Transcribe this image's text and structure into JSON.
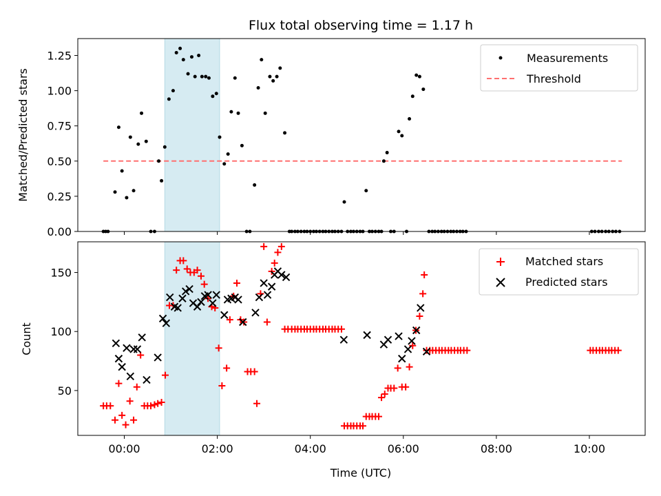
{
  "chart_data": {
    "type": "scatter",
    "title": "Flux total observing time = 1.17 h",
    "xlabel": "Time (UTC)",
    "xlim": [
      -1.0,
      11.2
    ],
    "xticks": [
      0,
      2,
      4,
      6,
      8,
      10
    ],
    "xtick_labels": [
      "00:00",
      "02:00",
      "04:00",
      "06:00",
      "08:00",
      "10:00"
    ],
    "highlight_span": [
      0.87,
      2.05
    ],
    "colors": {
      "highlight": "#add8e6",
      "measurement": "#000000",
      "threshold": "#ff6f6f",
      "matched": "#ff0000",
      "predicted": "#000000"
    },
    "panels": [
      {
        "ylabel": "Matched/Predicted stars",
        "ylim": [
          0,
          1.37
        ],
        "yticks": [
          0,
          0.25,
          0.5,
          0.75,
          1.0,
          1.25
        ],
        "ytick_labels": [
          "0.00",
          "0.25",
          "0.50",
          "0.75",
          "1.00",
          "1.25"
        ],
        "legend": [
          "Measurements",
          "Threshold"
        ],
        "threshold": {
          "value": 0.5,
          "x_start": -0.45,
          "x_end": 10.7
        },
        "measurements": [
          [
            -0.45,
            0
          ],
          [
            -0.4,
            0
          ],
          [
            -0.35,
            0
          ],
          [
            -0.2,
            0.28
          ],
          [
            -0.12,
            0.74
          ],
          [
            -0.05,
            0.43
          ],
          [
            0.05,
            0.24
          ],
          [
            0.13,
            0.67
          ],
          [
            0.2,
            0.29
          ],
          [
            0.3,
            0.62
          ],
          [
            0.37,
            0.84
          ],
          [
            0.47,
            0.64
          ],
          [
            0.57,
            0
          ],
          [
            0.65,
            0
          ],
          [
            0.74,
            0.5
          ],
          [
            0.8,
            0.36
          ],
          [
            0.87,
            0.6
          ],
          [
            0.96,
            0.94
          ],
          [
            1.05,
            1.0
          ],
          [
            1.12,
            1.27
          ],
          [
            1.2,
            1.3
          ],
          [
            1.27,
            1.22
          ],
          [
            1.37,
            1.12
          ],
          [
            1.45,
            1.24
          ],
          [
            1.52,
            1.1
          ],
          [
            1.6,
            1.25
          ],
          [
            1.67,
            1.1
          ],
          [
            1.75,
            1.1
          ],
          [
            1.82,
            1.09
          ],
          [
            1.9,
            0.96
          ],
          [
            1.98,
            0.98
          ],
          [
            2.05,
            0.67
          ],
          [
            2.15,
            0.48
          ],
          [
            2.23,
            0.55
          ],
          [
            2.3,
            0.85
          ],
          [
            2.38,
            1.09
          ],
          [
            2.45,
            0.84
          ],
          [
            2.53,
            0.61
          ],
          [
            2.63,
            0
          ],
          [
            2.7,
            0
          ],
          [
            2.8,
            0.33
          ],
          [
            2.88,
            1.02
          ],
          [
            2.95,
            1.22
          ],
          [
            3.03,
            0.84
          ],
          [
            3.13,
            1.1
          ],
          [
            3.2,
            1.07
          ],
          [
            3.28,
            1.1
          ],
          [
            3.35,
            1.16
          ],
          [
            3.45,
            0.7
          ],
          [
            3.55,
            0
          ],
          [
            3.6,
            0
          ],
          [
            3.67,
            0
          ],
          [
            3.73,
            0
          ],
          [
            3.8,
            0
          ],
          [
            3.87,
            0
          ],
          [
            3.93,
            0
          ],
          [
            4.0,
            0
          ],
          [
            4.07,
            0
          ],
          [
            4.13,
            0
          ],
          [
            4.2,
            0
          ],
          [
            4.27,
            0
          ],
          [
            4.33,
            0
          ],
          [
            4.4,
            0
          ],
          [
            4.47,
            0
          ],
          [
            4.53,
            0
          ],
          [
            4.6,
            0
          ],
          [
            4.67,
            0
          ],
          [
            4.73,
            0.21
          ],
          [
            4.8,
            0
          ],
          [
            4.87,
            0
          ],
          [
            4.93,
            0
          ],
          [
            5.0,
            0
          ],
          [
            5.07,
            0
          ],
          [
            5.13,
            0
          ],
          [
            5.2,
            0.29
          ],
          [
            5.27,
            0
          ],
          [
            5.33,
            0
          ],
          [
            5.4,
            0
          ],
          [
            5.47,
            0
          ],
          [
            5.53,
            0
          ],
          [
            5.58,
            0.5
          ],
          [
            5.65,
            0.56
          ],
          [
            5.73,
            0
          ],
          [
            5.8,
            0
          ],
          [
            5.9,
            0.71
          ],
          [
            5.97,
            0.68
          ],
          [
            6.07,
            0
          ],
          [
            6.13,
            0.8
          ],
          [
            6.2,
            0.96
          ],
          [
            6.28,
            1.11
          ],
          [
            6.35,
            1.1
          ],
          [
            6.43,
            1.01
          ],
          [
            6.55,
            0
          ],
          [
            6.62,
            0
          ],
          [
            6.68,
            0
          ],
          [
            6.75,
            0
          ],
          [
            6.82,
            0
          ],
          [
            6.88,
            0
          ],
          [
            6.95,
            0
          ],
          [
            7.02,
            0
          ],
          [
            7.08,
            0
          ],
          [
            7.15,
            0
          ],
          [
            7.22,
            0
          ],
          [
            7.28,
            0
          ],
          [
            7.35,
            0
          ],
          [
            10.05,
            0
          ],
          [
            10.12,
            0
          ],
          [
            10.2,
            0
          ],
          [
            10.27,
            0
          ],
          [
            10.35,
            0
          ],
          [
            10.42,
            0
          ],
          [
            10.5,
            0
          ],
          [
            10.57,
            0
          ],
          [
            10.65,
            0
          ]
        ]
      },
      {
        "ylabel": "Count",
        "ylim": [
          12,
          176
        ],
        "yticks": [
          50,
          100,
          150
        ],
        "ytick_labels": [
          "50",
          "100",
          "150"
        ],
        "legend": [
          "Matched stars",
          "Predicted stars"
        ],
        "matched": [
          [
            -0.45,
            37
          ],
          [
            -0.38,
            37
          ],
          [
            -0.3,
            37
          ],
          [
            -0.2,
            25
          ],
          [
            -0.12,
            56
          ],
          [
            -0.05,
            29
          ],
          [
            0.03,
            21
          ],
          [
            0.12,
            41
          ],
          [
            0.2,
            25
          ],
          [
            0.27,
            53
          ],
          [
            0.35,
            80
          ],
          [
            0.43,
            37
          ],
          [
            0.5,
            37
          ],
          [
            0.57,
            37
          ],
          [
            0.65,
            38
          ],
          [
            0.72,
            39
          ],
          [
            0.8,
            40
          ],
          [
            0.88,
            63
          ],
          [
            0.97,
            122
          ],
          [
            1.05,
            122
          ],
          [
            1.12,
            152
          ],
          [
            1.2,
            160
          ],
          [
            1.27,
            160
          ],
          [
            1.35,
            153
          ],
          [
            1.42,
            150
          ],
          [
            1.5,
            150
          ],
          [
            1.57,
            152
          ],
          [
            1.65,
            147
          ],
          [
            1.72,
            140
          ],
          [
            1.8,
            128
          ],
          [
            1.88,
            121
          ],
          [
            1.95,
            120
          ],
          [
            2.03,
            86
          ],
          [
            2.1,
            54
          ],
          [
            2.2,
            69
          ],
          [
            2.27,
            110
          ],
          [
            2.35,
            130
          ],
          [
            2.42,
            141
          ],
          [
            2.5,
            110
          ],
          [
            2.57,
            108
          ],
          [
            2.65,
            66
          ],
          [
            2.72,
            66
          ],
          [
            2.8,
            66
          ],
          [
            2.85,
            39
          ],
          [
            2.93,
            132
          ],
          [
            3.0,
            172
          ],
          [
            3.07,
            108
          ],
          [
            3.17,
            151
          ],
          [
            3.23,
            158
          ],
          [
            3.3,
            167
          ],
          [
            3.38,
            172
          ],
          [
            3.45,
            102
          ],
          [
            3.52,
            102
          ],
          [
            3.6,
            102
          ],
          [
            3.67,
            102
          ],
          [
            3.73,
            102
          ],
          [
            3.8,
            102
          ],
          [
            3.87,
            102
          ],
          [
            3.93,
            102
          ],
          [
            4.0,
            102
          ],
          [
            4.07,
            102
          ],
          [
            4.13,
            102
          ],
          [
            4.2,
            102
          ],
          [
            4.27,
            102
          ],
          [
            4.33,
            102
          ],
          [
            4.4,
            102
          ],
          [
            4.47,
            102
          ],
          [
            4.53,
            102
          ],
          [
            4.6,
            102
          ],
          [
            4.67,
            102
          ],
          [
            4.73,
            20
          ],
          [
            4.8,
            20
          ],
          [
            4.87,
            20
          ],
          [
            4.93,
            20
          ],
          [
            5.0,
            20
          ],
          [
            5.07,
            20
          ],
          [
            5.13,
            20
          ],
          [
            5.2,
            28
          ],
          [
            5.27,
            28
          ],
          [
            5.33,
            28
          ],
          [
            5.4,
            28
          ],
          [
            5.47,
            28
          ],
          [
            5.53,
            44
          ],
          [
            5.6,
            47
          ],
          [
            5.67,
            52
          ],
          [
            5.73,
            52
          ],
          [
            5.8,
            52
          ],
          [
            5.88,
            69
          ],
          [
            5.97,
            53
          ],
          [
            6.05,
            53
          ],
          [
            6.13,
            70
          ],
          [
            6.2,
            88
          ],
          [
            6.27,
            101
          ],
          [
            6.35,
            113
          ],
          [
            6.42,
            132
          ],
          [
            6.45,
            148
          ],
          [
            6.5,
            84
          ],
          [
            6.57,
            84
          ],
          [
            6.63,
            84
          ],
          [
            6.7,
            84
          ],
          [
            6.77,
            84
          ],
          [
            6.83,
            84
          ],
          [
            6.9,
            84
          ],
          [
            6.97,
            84
          ],
          [
            7.03,
            84
          ],
          [
            7.1,
            84
          ],
          [
            7.17,
            84
          ],
          [
            7.23,
            84
          ],
          [
            7.3,
            84
          ],
          [
            7.37,
            84
          ],
          [
            10.02,
            84
          ],
          [
            10.08,
            84
          ],
          [
            10.15,
            84
          ],
          [
            10.22,
            84
          ],
          [
            10.28,
            84
          ],
          [
            10.35,
            84
          ],
          [
            10.42,
            84
          ],
          [
            10.48,
            84
          ],
          [
            10.55,
            84
          ],
          [
            10.62,
            84
          ]
        ],
        "predicted": [
          [
            -0.18,
            90
          ],
          [
            -0.12,
            77
          ],
          [
            -0.05,
            70
          ],
          [
            0.05,
            86
          ],
          [
            0.13,
            62
          ],
          [
            0.2,
            85
          ],
          [
            0.28,
            85
          ],
          [
            0.38,
            95
          ],
          [
            0.48,
            59
          ],
          [
            0.72,
            78
          ],
          [
            0.83,
            111
          ],
          [
            0.9,
            107
          ],
          [
            0.98,
            129
          ],
          [
            1.08,
            121
          ],
          [
            1.15,
            120
          ],
          [
            1.25,
            128
          ],
          [
            1.32,
            134
          ],
          [
            1.4,
            136
          ],
          [
            1.48,
            124
          ],
          [
            1.57,
            121
          ],
          [
            1.65,
            125
          ],
          [
            1.73,
            130
          ],
          [
            1.8,
            131
          ],
          [
            1.9,
            124
          ],
          [
            1.98,
            131
          ],
          [
            2.15,
            114
          ],
          [
            2.22,
            127
          ],
          [
            2.3,
            128
          ],
          [
            2.38,
            129
          ],
          [
            2.45,
            127
          ],
          [
            2.55,
            108
          ],
          [
            2.82,
            116
          ],
          [
            2.9,
            129
          ],
          [
            3.0,
            141
          ],
          [
            3.08,
            131
          ],
          [
            3.17,
            138
          ],
          [
            3.23,
            148
          ],
          [
            3.3,
            151
          ],
          [
            3.38,
            148
          ],
          [
            3.48,
            146
          ],
          [
            4.72,
            93
          ],
          [
            5.22,
            97
          ],
          [
            5.58,
            89
          ],
          [
            5.67,
            93
          ],
          [
            5.9,
            96
          ],
          [
            5.97,
            77
          ],
          [
            6.1,
            85
          ],
          [
            6.18,
            92
          ],
          [
            6.28,
            101
          ],
          [
            6.37,
            120
          ],
          [
            6.5,
            83
          ]
        ]
      }
    ]
  }
}
